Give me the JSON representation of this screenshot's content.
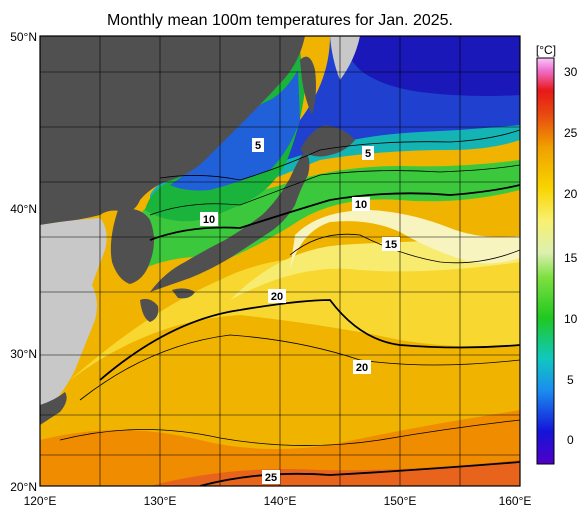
{
  "title": "Monthly mean 100m temperatures for Jan. 2025.",
  "lat_labels": [
    "50°N",
    "40°N",
    "30°N",
    "20°N"
  ],
  "lon_labels": [
    "120°E",
    "130°E",
    "140°E",
    "150°E",
    "160°E"
  ],
  "colorbar": {
    "unit": "[°C]",
    "ticks": [
      "30",
      "25",
      "20",
      "15",
      "10",
      "5",
      "0"
    ]
  },
  "contour_labels": [
    "5",
    "5",
    "10",
    "10",
    "15",
    "20",
    "20",
    "25"
  ],
  "colors": {
    "land": "#505050",
    "land_light": "#c8c8c8",
    "cold": "#1a20c0",
    "mid": "#1ec81e",
    "warm": "#f0c800",
    "hot": "#e84a10"
  }
}
